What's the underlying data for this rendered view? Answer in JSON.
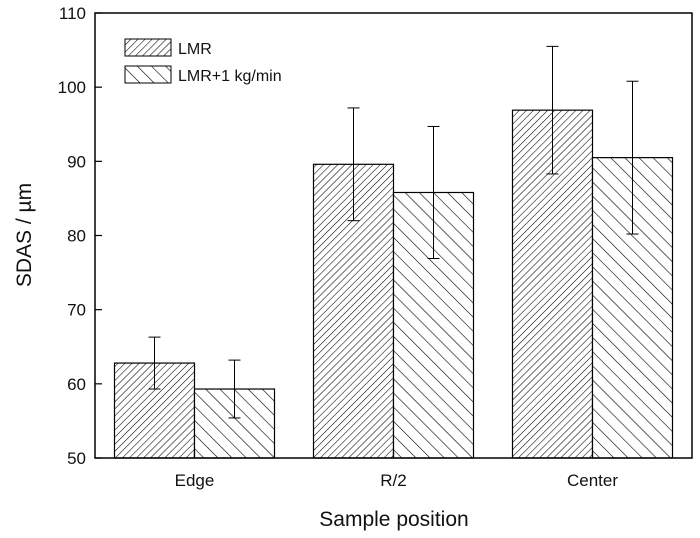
{
  "chart_data": {
    "type": "bar",
    "categories": [
      "Edge",
      "R/2",
      "Center"
    ],
    "series": [
      {
        "name": "LMR",
        "values": [
          62.8,
          89.6,
          96.9
        ],
        "errors": [
          3.5,
          7.6,
          8.6
        ],
        "pattern": "dense-diagonal-hatch"
      },
      {
        "name": "LMR+1 kg/min",
        "values": [
          59.3,
          85.8,
          90.5
        ],
        "errors": [
          3.9,
          8.9,
          10.3
        ],
        "pattern": "sparse-diagonal-hatch"
      }
    ],
    "xlabel": "Sample position",
    "ylabel": "SDAS / µm",
    "ylim": [
      50,
      110
    ],
    "yticks": [
      50,
      60,
      70,
      80,
      90,
      100,
      110
    ],
    "grid": false,
    "legend_position": "top-left",
    "colors": {
      "axis": "#000000",
      "bar_fill": "#ffffff",
      "hatch": "#000000"
    }
  }
}
